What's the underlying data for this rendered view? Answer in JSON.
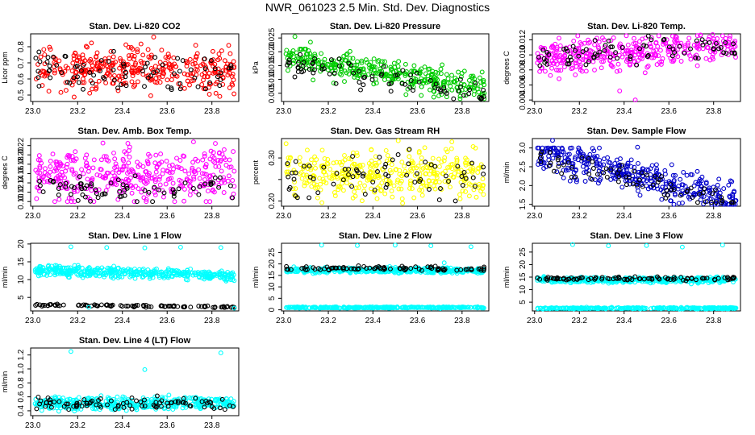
{
  "title": "NWR_061023  2.5 Min. Std. Dev. Diagnostics",
  "chart_data": [
    {
      "type": "scatter",
      "id": "co2",
      "title": "Stan. Dev. Li-820 CO2",
      "ylabel": "Licor ppm",
      "color": "#ff0000",
      "xlim": [
        22.99,
        23.92
      ],
      "ylim": [
        0.46,
        0.88
      ],
      "xticks": [
        23.0,
        23.2,
        23.4,
        23.6,
        23.8
      ],
      "yticks": [
        0.5,
        0.6,
        0.7,
        0.8
      ],
      "ytick_labels": [
        "0.5",
        "0.6",
        "0.7",
        "0.8"
      ],
      "main": {
        "n": 360,
        "base": 0.66,
        "slope": -0.02,
        "spread": 0.07,
        "lo": 0.47,
        "hi": 0.86,
        "seed": 11
      },
      "black": {
        "n": 80,
        "base": 0.64,
        "slope": -0.02,
        "spread": 0.06,
        "lo": 0.48,
        "hi": 0.84,
        "seed": 12
      },
      "outliers": []
    },
    {
      "type": "scatter",
      "id": "pressure",
      "title": "Stan. Dev. Li-820 Pressure",
      "ylabel": "kPa",
      "color": "#00cc00",
      "xlim": [
        22.99,
        23.92
      ],
      "ylim": [
        0.002,
        0.0265
      ],
      "xticks": [
        23.0,
        23.2,
        23.4,
        23.6,
        23.8
      ],
      "yticks": [
        0.005,
        0.01,
        0.015,
        0.02,
        0.025
      ],
      "ytick_labels": [
        "0.005",
        "0.010",
        "0.015",
        "0.020",
        "0.025"
      ],
      "main": {
        "n": 360,
        "base": 0.0125,
        "slope": -0.006,
        "spread": 0.0025,
        "lo": 0.003,
        "hi": 0.021,
        "seed": 21
      },
      "black": {
        "n": 80,
        "base": 0.0105,
        "slope": -0.006,
        "spread": 0.0022,
        "lo": 0.003,
        "hi": 0.019,
        "seed": 22
      },
      "outliers": [
        [
          23.05,
          0.0255
        ],
        [
          23.12,
          0.0235
        ]
      ]
    },
    {
      "type": "scatter",
      "id": "temp",
      "title": "Stan. Dev. Li-820 Temp.",
      "ylabel": "degrees C",
      "color": "#ff00ff",
      "xlim": [
        22.99,
        23.92
      ],
      "ylim": [
        0.0038,
        0.0128
      ],
      "xticks": [
        23.0,
        23.2,
        23.4,
        23.6,
        23.8
      ],
      "yticks": [
        0.004,
        0.006,
        0.008,
        0.01,
        0.012
      ],
      "ytick_labels": [
        "0.004",
        "0.006",
        "0.008",
        "0.010",
        "0.012"
      ],
      "main": {
        "n": 380,
        "base": 0.0105,
        "slope": 0.0012,
        "spread": 0.0012,
        "lo": 0.0045,
        "hi": 0.0127,
        "seed": 31
      },
      "black": {
        "n": 80,
        "base": 0.0105,
        "slope": 0.0012,
        "spread": 0.001,
        "lo": 0.006,
        "hi": 0.0127,
        "seed": 32
      },
      "outliers": [
        [
          23.45,
          0.004
        ],
        [
          23.38,
          0.0052
        ]
      ]
    },
    {
      "type": "scatter",
      "id": "boxtemp",
      "title": "Stan. Dev. Amb. Box Temp.",
      "ylabel": "degrees C",
      "color": "#ff00ff",
      "xlim": [
        22.99,
        23.92
      ],
      "ylim": [
        0.09,
        0.235
      ],
      "xticks": [
        23.0,
        23.2,
        23.4,
        23.6,
        23.8
      ],
      "yticks": [
        0.1,
        0.12,
        0.14,
        0.16,
        0.18,
        0.2,
        0.22
      ],
      "ytick_labels": [
        "0.10",
        "0.12",
        "0.14",
        "0.16",
        "0.18",
        "0.20",
        "0.22"
      ],
      "main": {
        "n": 380,
        "base": 0.155,
        "slope": 0,
        "spread": 0.028,
        "lo": 0.1,
        "hi": 0.228,
        "seed": 41
      },
      "black": {
        "n": 70,
        "base": 0.125,
        "slope": 0,
        "spread": 0.012,
        "lo": 0.1,
        "hi": 0.16,
        "seed": 42
      },
      "outliers": []
    },
    {
      "type": "scatter",
      "id": "rh",
      "title": "Stan. Dev. Gas Stream RH",
      "ylabel": "percent",
      "color": "#ffff00",
      "xlim": [
        22.99,
        23.92
      ],
      "ylim": [
        0.188,
        0.345
      ],
      "xticks": [
        23.0,
        23.2,
        23.4,
        23.6,
        23.8
      ],
      "yticks": [
        0.2,
        0.25,
        0.3
      ],
      "ytick_labels": [
        "0.20",
        "",
        "0.30"
      ],
      "main": {
        "n": 380,
        "base": 0.262,
        "slope": 0,
        "spread": 0.028,
        "lo": 0.195,
        "hi": 0.34,
        "seed": 51
      },
      "black": {
        "n": 70,
        "base": 0.262,
        "slope": 0,
        "spread": 0.024,
        "lo": 0.2,
        "hi": 0.33,
        "seed": 52
      },
      "outliers": []
    },
    {
      "type": "scatter",
      "id": "sampleflow",
      "title": "Stan. Dev. Sample Flow",
      "ylabel": "ml/min",
      "color": "#0000cc",
      "xlim": [
        22.99,
        23.92
      ],
      "ylim": [
        1.45,
        3.25
      ],
      "xticks": [
        23.0,
        23.2,
        23.4,
        23.6,
        23.8
      ],
      "yticks": [
        1.5,
        2.0,
        2.5,
        3.0
      ],
      "ytick_labels": [
        "1.5",
        "2.0",
        "2.5",
        "3.0"
      ],
      "main": {
        "n": 380,
        "base": 2.25,
        "slope": -0.65,
        "spread": 0.22,
        "lo": 1.5,
        "hi": 3.0,
        "seed": 61
      },
      "black": {
        "n": 75,
        "base": 2.15,
        "slope": -0.6,
        "spread": 0.2,
        "lo": 1.55,
        "hi": 2.9,
        "seed": 62
      },
      "outliers": [
        [
          23.08,
          3.2
        ],
        [
          23.46,
          3.02
        ]
      ]
    },
    {
      "type": "scatter",
      "id": "line1",
      "title": "Stan. Dev. Line 1 Flow",
      "ylabel": "ml/min",
      "color": "#00ffff",
      "xlim": [
        22.99,
        23.92
      ],
      "ylim": [
        1.2,
        20.2
      ],
      "xticks": [
        23.0,
        23.2,
        23.4,
        23.6,
        23.8
      ],
      "yticks": [
        5,
        10,
        15,
        20
      ],
      "ytick_labels": [
        "5",
        "10",
        "15",
        "20"
      ],
      "main": {
        "n": 420,
        "base": 11.8,
        "slope": -0.9,
        "spread": 0.7,
        "lo": 9.5,
        "hi": 14,
        "seed": 71
      },
      "black": {
        "n": 90,
        "base": 2.6,
        "slope": -0.3,
        "spread": 0.15,
        "lo": 2.0,
        "hi": 3.2,
        "seed": 72
      },
      "outliers": [
        [
          23.17,
          19.2
        ],
        [
          23.33,
          19.0
        ],
        [
          23.5,
          18.9
        ],
        [
          23.66,
          19.1
        ],
        [
          23.84,
          19.0
        ],
        [
          23.9,
          2.0
        ],
        [
          23.25,
          2.2
        ]
      ]
    },
    {
      "type": "scatter",
      "id": "line2",
      "title": "Stan. Dev. Line 2 Flow",
      "ylabel": "ml/min",
      "color": "#00ffff",
      "xlim": [
        22.99,
        23.92
      ],
      "ylim": [
        -0.5,
        29
      ],
      "xticks": [
        23.0,
        23.2,
        23.4,
        23.6,
        23.8
      ],
      "yticks": [
        0,
        5,
        10,
        15,
        20,
        25
      ],
      "ytick_labels": [
        "0",
        "5",
        "10",
        "15",
        "20",
        "25"
      ],
      "main": {
        "n": 420,
        "base": 17.2,
        "slope": 0,
        "spread": 0.6,
        "lo": 15.5,
        "hi": 19,
        "seed": 81
      },
      "black": {
        "n": 90,
        "base": 18.0,
        "slope": 0,
        "spread": 0.4,
        "lo": 17,
        "hi": 19.2,
        "seed": 82
      },
      "low": {
        "n": 300,
        "base": 1.0,
        "spread": 0.15
      },
      "outliers": [
        [
          23.17,
          28.2
        ],
        [
          23.33,
          28.0
        ],
        [
          23.5,
          28.2
        ],
        [
          23.66,
          27.9
        ],
        [
          23.84,
          27.5
        ],
        [
          23.72,
          20.5
        ]
      ]
    },
    {
      "type": "scatter",
      "id": "line3",
      "title": "Stan. Dev. Line 3 Flow",
      "ylabel": "ml/min",
      "color": "#00ffff",
      "xlim": [
        22.99,
        23.92
      ],
      "ylim": [
        1.5,
        28.5
      ],
      "xticks": [
        23.0,
        23.2,
        23.4,
        23.6,
        23.8
      ],
      "yticks": [
        5,
        10,
        15,
        20,
        25
      ],
      "ytick_labels": [
        "5",
        "10",
        "15",
        "20",
        "25"
      ],
      "main": {
        "n": 420,
        "base": 13.9,
        "slope": 0,
        "spread": 0.5,
        "lo": 12.5,
        "hi": 15.5,
        "seed": 91
      },
      "black": {
        "n": 90,
        "base": 14.4,
        "slope": 0,
        "spread": 0.35,
        "lo": 13.4,
        "hi": 16.5,
        "seed": 92
      },
      "low": {
        "n": 300,
        "base": 2.6,
        "spread": 0.15
      },
      "outliers": [
        [
          23.17,
          28.0
        ],
        [
          23.33,
          27.5
        ],
        [
          23.5,
          27.6
        ],
        [
          23.66,
          27.0
        ],
        [
          23.84,
          27.8
        ],
        [
          23.7,
          12.3
        ]
      ]
    },
    {
      "type": "scatter",
      "id": "line4",
      "title": "Stan. Dev. Line 4 (LT) Flow",
      "ylabel": "ml/min",
      "color": "#00ffff",
      "xlim": [
        22.99,
        23.92
      ],
      "ylim": [
        0.33,
        1.3
      ],
      "xticks": [
        23.0,
        23.2,
        23.4,
        23.6,
        23.8
      ],
      "yticks": [
        0.4,
        0.6,
        0.8,
        1.0,
        1.2
      ],
      "ytick_labels": [
        "0.4",
        "0.6",
        "0.8",
        "1.0",
        "1.2"
      ],
      "main": {
        "n": 420,
        "base": 0.51,
        "slope": 0,
        "spread": 0.045,
        "lo": 0.38,
        "hi": 0.66,
        "seed": 101
      },
      "black": {
        "n": 90,
        "base": 0.51,
        "slope": 0,
        "spread": 0.04,
        "lo": 0.42,
        "hi": 0.62,
        "seed": 102
      },
      "outliers": [
        [
          23.17,
          1.25
        ],
        [
          23.5,
          0.99
        ],
        [
          23.84,
          1.23
        ]
      ]
    }
  ]
}
